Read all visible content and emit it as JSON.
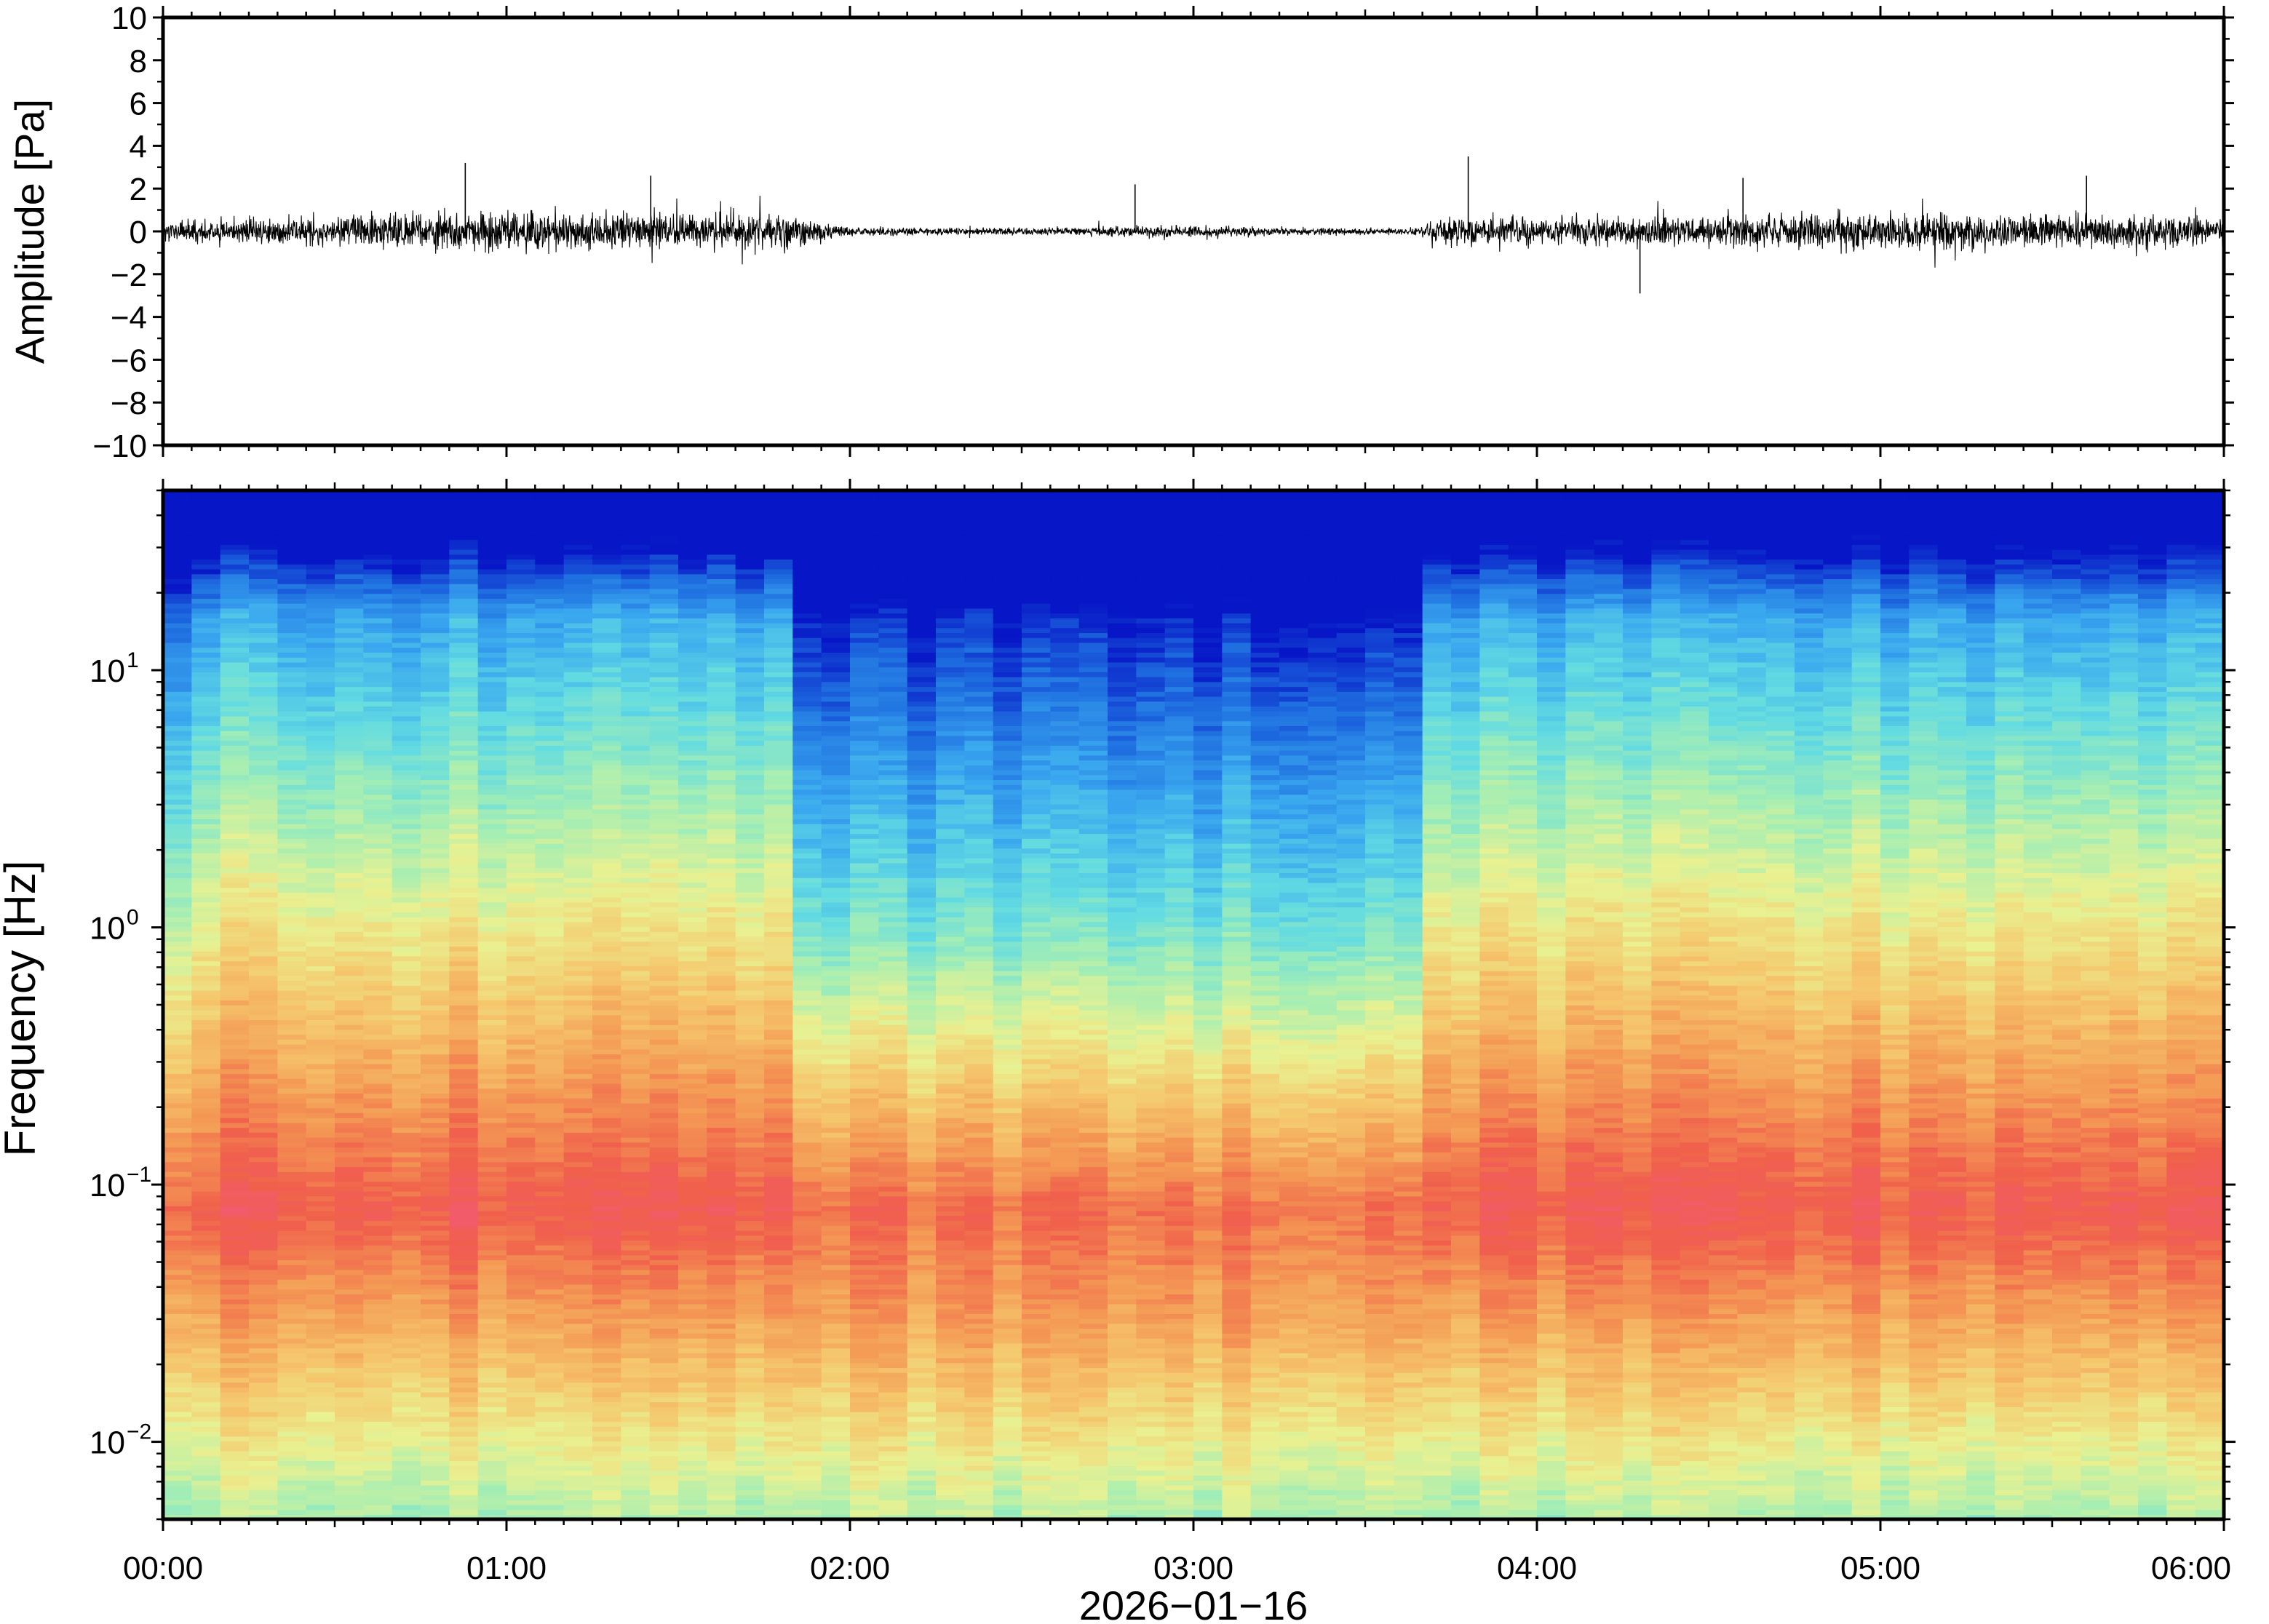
{
  "chart_data": [
    {
      "type": "line",
      "panel": "waveform",
      "ylabel": "Amplitude [Pa]",
      "ylim": [
        -10,
        10
      ],
      "yticks": [
        "10",
        "8",
        "6",
        "4",
        "2",
        "0",
        "−2",
        "−4",
        "−6",
        "−8",
        "−10"
      ],
      "ytick_values": [
        10,
        8,
        6,
        4,
        2,
        0,
        -2,
        -4,
        -6,
        -8,
        -10
      ],
      "xlim": [
        "00:00",
        "06:00"
      ],
      "line_color": "#000000",
      "envelope": {
        "x_hours": [
          0.0,
          0.25,
          0.5,
          0.75,
          1.0,
          1.25,
          1.5,
          1.75,
          1.85,
          2.0,
          2.25,
          2.5,
          2.75,
          3.0,
          3.25,
          3.5,
          3.65,
          3.75,
          4.0,
          4.25,
          4.5,
          4.75,
          5.0,
          5.25,
          5.5,
          5.75,
          6.0
        ],
        "amplitude_pa": [
          0.7,
          0.9,
          1.1,
          1.3,
          1.5,
          1.4,
          1.4,
          1.3,
          1.2,
          0.35,
          0.3,
          0.25,
          0.4,
          0.45,
          0.3,
          0.25,
          0.25,
          1.2,
          1.1,
          1.1,
          1.2,
          1.3,
          1.3,
          1.3,
          1.2,
          1.2,
          1.1
        ]
      },
      "peaks": [
        {
          "x_hour": 0.88,
          "value": 3.2
        },
        {
          "x_hour": 1.42,
          "value": 2.6
        },
        {
          "x_hour": 2.83,
          "value": 2.2
        },
        {
          "x_hour": 3.8,
          "value": 3.5
        },
        {
          "x_hour": 4.3,
          "value": -2.9
        },
        {
          "x_hour": 4.6,
          "value": 2.5
        },
        {
          "x_hour": 5.6,
          "value": 2.6
        }
      ]
    },
    {
      "type": "heatmap",
      "panel": "spectrogram",
      "ylabel": "Frequency [Hz]",
      "xlabel": "2026−01−16",
      "yscale": "log",
      "ylim": [
        0.005,
        50
      ],
      "yticks": [
        {
          "base": "10",
          "exp": "1",
          "value": 10
        },
        {
          "base": "10",
          "exp": "0",
          "value": 1
        },
        {
          "base": "10",
          "exp": "−1",
          "value": 0.1
        },
        {
          "base": "10",
          "exp": "−2",
          "value": 0.01
        }
      ],
      "xlim": [
        "00:00",
        "06:00"
      ],
      "xticks": [
        "00:00",
        "01:00",
        "02:00",
        "03:00",
        "04:00",
        "05:00",
        "06:00"
      ],
      "xtick_hours": [
        0,
        1,
        2,
        3,
        4,
        5,
        6
      ],
      "colormap": [
        "#0716c6",
        "#1f6fe0",
        "#3aa8ef",
        "#62dbe2",
        "#a4eeb4",
        "#e9f191",
        "#f5c76d",
        "#f49a55",
        "#f0604b",
        "#f25a70"
      ],
      "color_scale_range": [
        0,
        1
      ],
      "quiet_interval_hours": [
        1.87,
        3.7
      ],
      "peak_frequency_hz": 0.08
    }
  ]
}
